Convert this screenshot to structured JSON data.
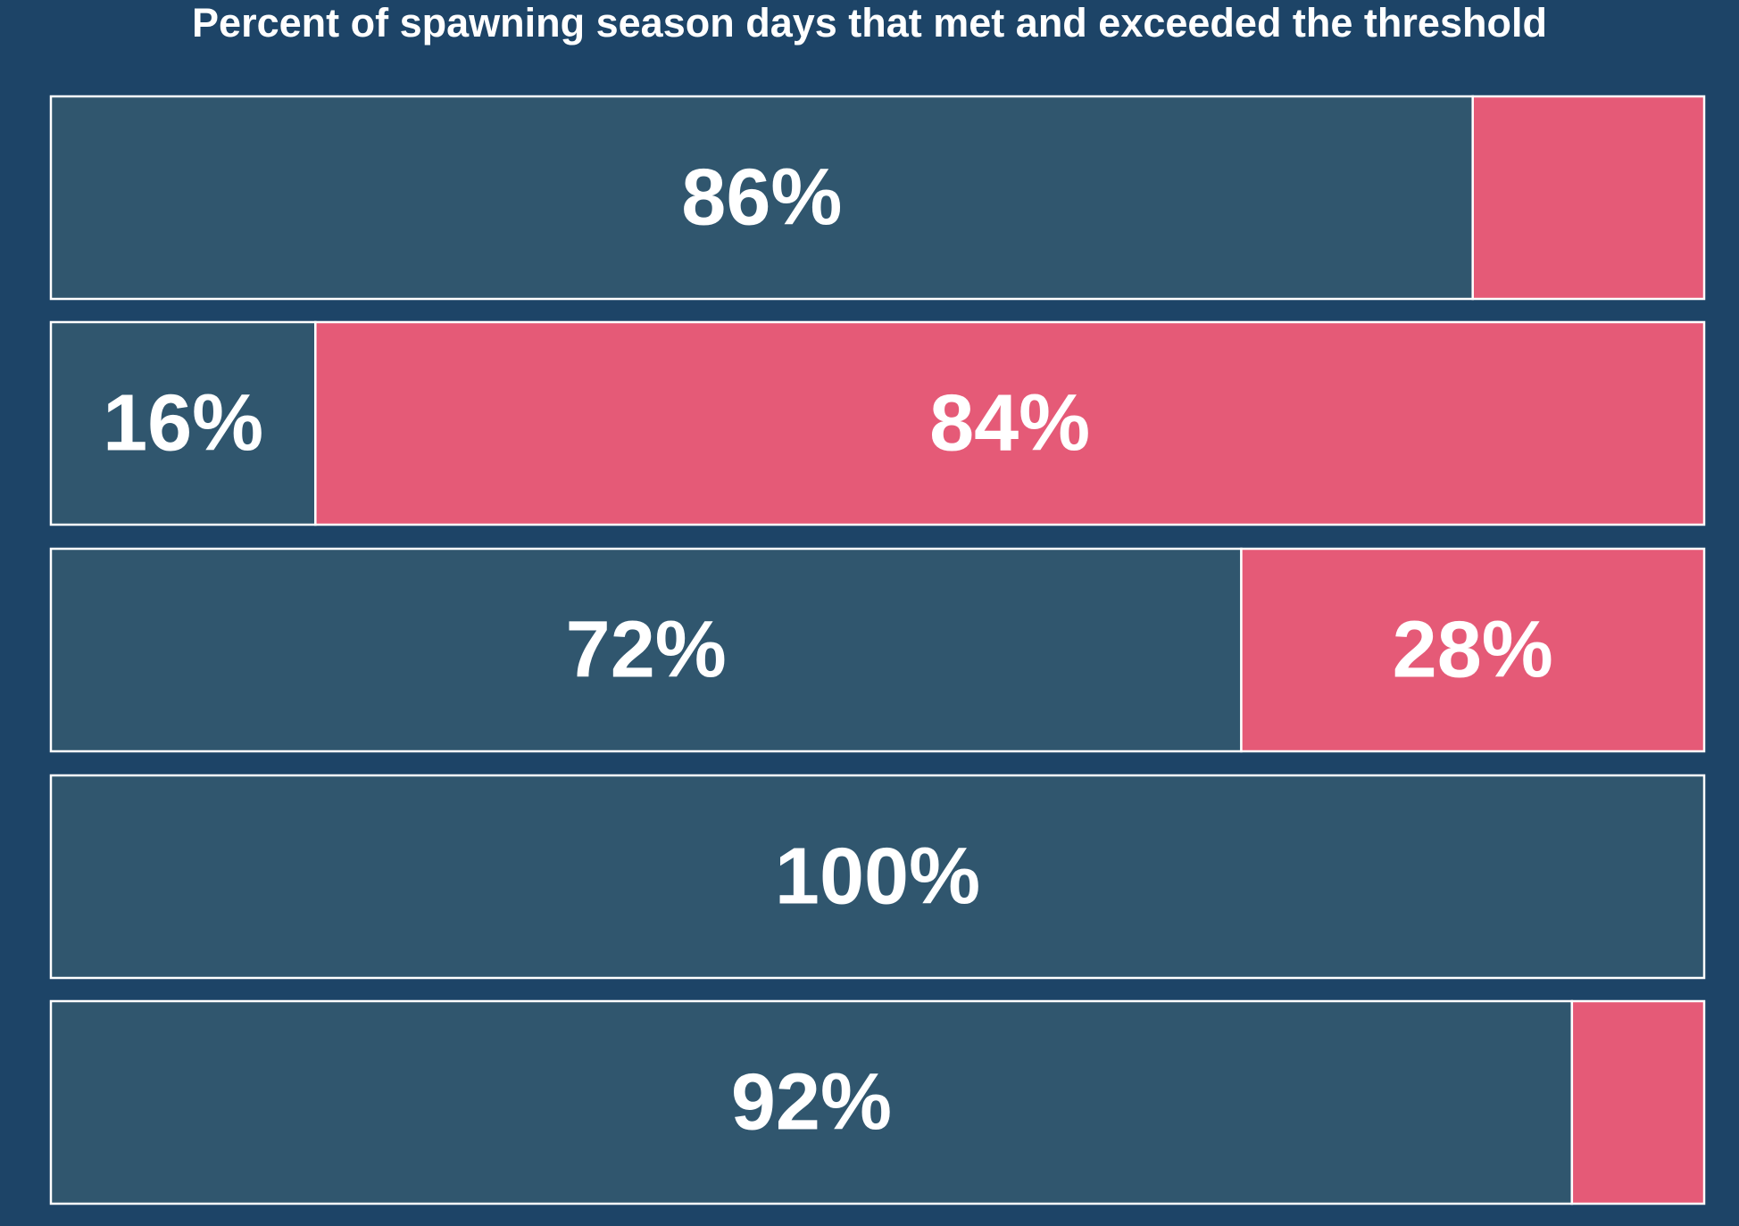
{
  "chart_data": {
    "type": "bar",
    "orientation": "horizontal",
    "stacked": true,
    "normalized": true,
    "title": "Percent of spawning season days that met and exceeded the threshold",
    "xlim": [
      0,
      100
    ],
    "grid": false,
    "legend": "none",
    "categories": [
      "",
      "",
      "",
      "",
      ""
    ],
    "series": [
      {
        "color": "#30566e",
        "values": [
          86,
          16,
          72,
          100,
          92
        ],
        "labels": [
          "86%",
          "16%",
          "72%",
          "100%",
          "92%"
        ]
      },
      {
        "color": "#e55a77",
        "values": [
          14,
          84,
          28,
          0,
          8
        ],
        "labels": [
          "",
          "84%",
          "28%",
          "",
          ""
        ]
      }
    ],
    "colors": {
      "background": "#1d4467",
      "bar_outline": "#ffffff",
      "label_text": "#ffffff"
    }
  }
}
